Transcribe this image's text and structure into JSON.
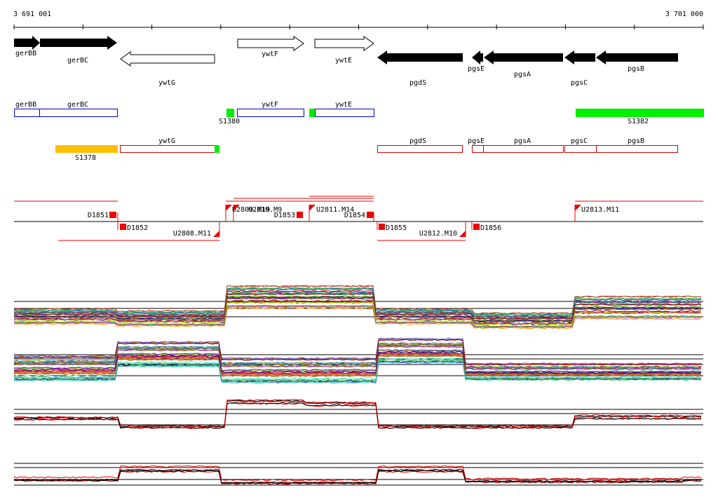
{
  "ruler": {
    "start": "3 691 001",
    "end": "3 701 000"
  },
  "genes": [
    {
      "name": "gerBB",
      "strand": "+",
      "fill": "black"
    },
    {
      "name": "gerBC",
      "strand": "+",
      "fill": "black"
    },
    {
      "name": "ywtG",
      "strand": "-",
      "fill": "white"
    },
    {
      "name": "ywtF",
      "strand": "+",
      "fill": "white"
    },
    {
      "name": "ywtE",
      "strand": "+",
      "fill": "white"
    },
    {
      "name": "pgdS",
      "strand": "-",
      "fill": "black"
    },
    {
      "name": "pgsE",
      "strand": "-",
      "fill": "black"
    },
    {
      "name": "pgsA",
      "strand": "-",
      "fill": "black"
    },
    {
      "name": "pgsC",
      "strand": "-",
      "fill": "black"
    },
    {
      "name": "pgsB",
      "strand": "-",
      "fill": "black"
    }
  ],
  "fwd_boxes": [
    "gerBB",
    "gerBC",
    "ywtF",
    "ywtE"
  ],
  "rev_boxes": [
    "ywtG",
    "pgdS",
    "pgsE",
    "pgsA",
    "pgsC",
    "pgsB"
  ],
  "segments": [
    "S1380",
    "S1382",
    "S1378"
  ],
  "promoters": [
    "D1851",
    "D1852",
    "U2808.M11",
    "U2809.M19",
    "U2810.M9",
    "D1853",
    "U2811.M14",
    "D1854",
    "D1855",
    "U2812.M10",
    "D1856",
    "U2813.M11"
  ],
  "colors": {
    "gene_fwd_box": "#0000cc",
    "gene_rev_box": "#dd0000",
    "segment_green": "#00ee00",
    "segment_yellow": "#ffc000",
    "promoter_red": "#ee0000",
    "trace_primary": "#dd0000",
    "trace_secondary": "#000000"
  }
}
